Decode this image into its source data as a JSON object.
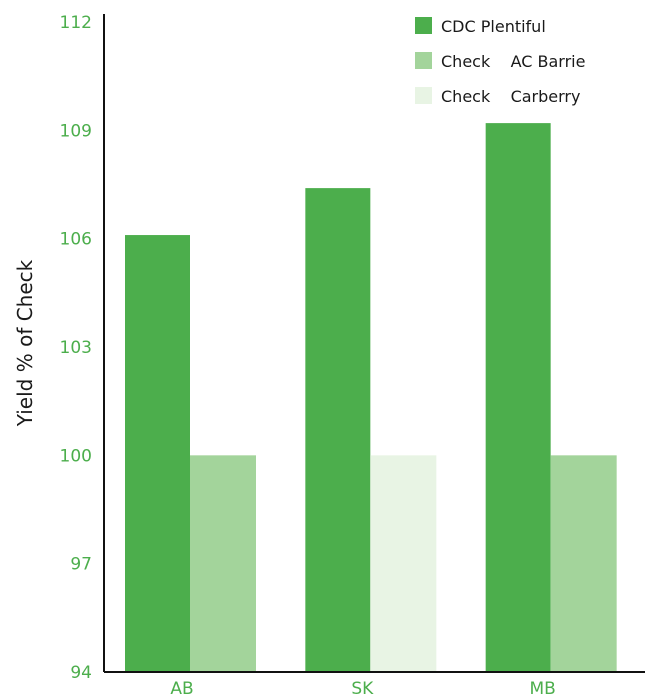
{
  "chart_data": {
    "type": "bar",
    "ylabel": "Yield % of Check",
    "ylim": [
      94,
      112
    ],
    "yticks": [
      94,
      97,
      100,
      103,
      106,
      109,
      112
    ],
    "categories": [
      "AB",
      "SK",
      "MB"
    ],
    "series": [
      {
        "name": "CDC Plentiful",
        "values": [
          106.1,
          107.4,
          109.2
        ],
        "color": "#4cae4c"
      },
      {
        "name": "Check  AC Barrie",
        "values": [
          100,
          null,
          100
        ],
        "color": "#a3d49b"
      },
      {
        "name": "Check  Carberry",
        "values": [
          null,
          100,
          null
        ],
        "color": "#e8f4e4"
      }
    ],
    "legend": {
      "position": "top-right",
      "entries": [
        {
          "label": "CDC Plentiful",
          "color": "#4cae4c"
        },
        {
          "label": "Check    AC Barrie",
          "color": "#a3d49b"
        },
        {
          "label": "Check    Carberry",
          "color": "#e8f4e4"
        }
      ]
    },
    "grid": false
  }
}
